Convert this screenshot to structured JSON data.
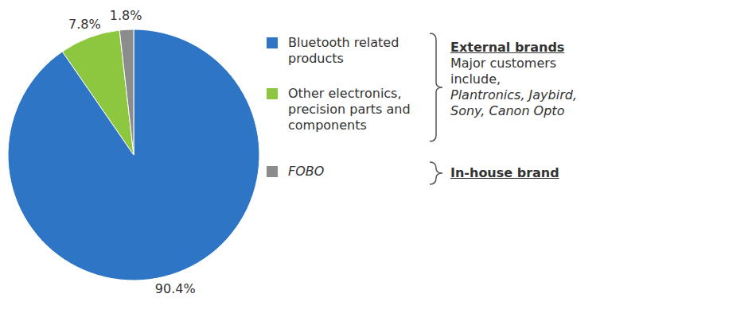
{
  "chart_data": {
    "type": "pie",
    "categories": [
      "Bluetooth related products",
      "Other electronics, precision parts and components",
      "FOBO"
    ],
    "values": [
      90.4,
      7.8,
      1.8
    ],
    "value_labels": [
      "90.4%",
      "7.8%",
      "1.8%"
    ],
    "colors": [
      "#2e75c6",
      "#8dc63f",
      "#8c8c8c"
    ],
    "data_labels": true,
    "legend": "right",
    "groups": [
      {
        "title": "External brands",
        "note": "Major customers include,",
        "customers": "Plantronics, Jaybird, Sony, Canon Opto",
        "categories": [
          "Bluetooth related products",
          "Other electronics, precision parts and components"
        ]
      },
      {
        "title": "In-house brand",
        "categories": [
          "FOBO"
        ]
      }
    ]
  }
}
